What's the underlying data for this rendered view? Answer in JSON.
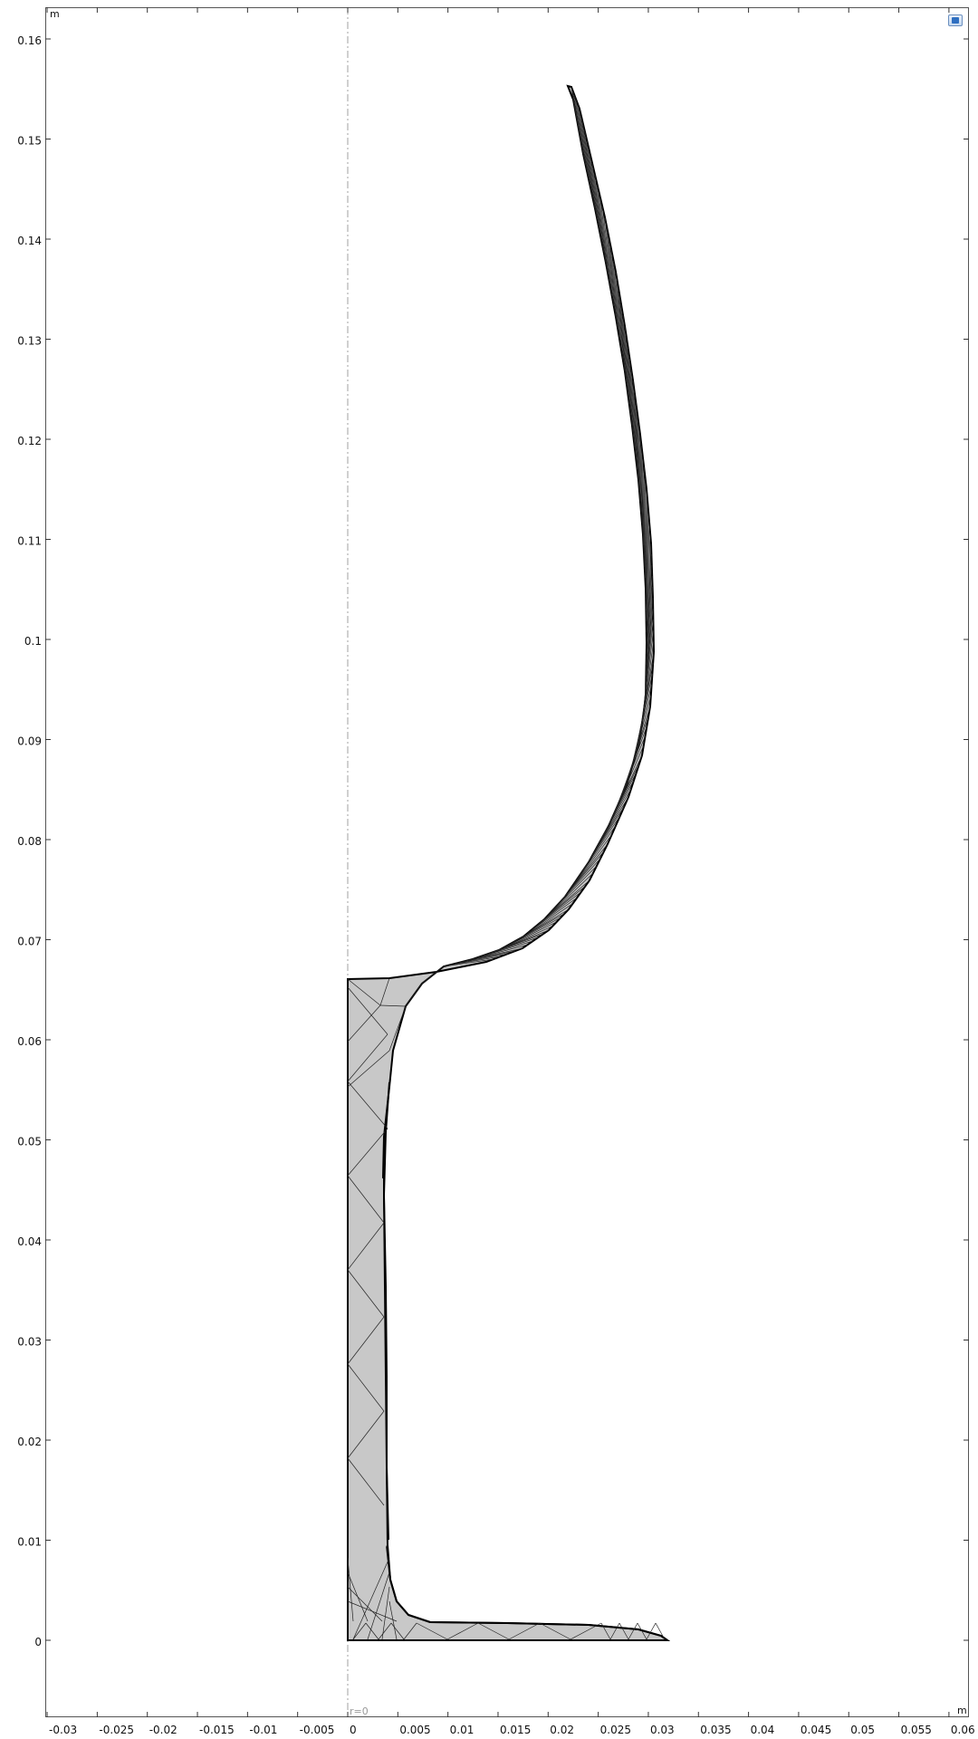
{
  "axes": {
    "x_unit": "m",
    "y_unit": "m",
    "axis_marker": "r=0",
    "x_ticks": [
      "-0.03",
      "-0.025",
      "-0.02",
      "-0.015",
      "-0.01",
      "-0.005",
      "0",
      "0.005",
      "0.01",
      "0.015",
      "0.02",
      "0.025",
      "0.03",
      "0.035",
      "0.04",
      "0.045",
      "0.05",
      "0.055",
      "0.06"
    ],
    "y_ticks": [
      "0",
      "0.01",
      "0.02",
      "0.03",
      "0.04",
      "0.05",
      "0.06",
      "0.07",
      "0.08",
      "0.09",
      "0.1",
      "0.11",
      "0.12",
      "0.13",
      "0.14",
      "0.15",
      "0.16"
    ]
  },
  "diagram": {
    "geometry": "axisymmetric wine glass cross-section (meshed)",
    "outline_inner": [
      [
        0,
        0.0665
      ],
      [
        0.004,
        0.0667
      ],
      [
        0.01,
        0.0672
      ],
      [
        0.0145,
        0.0678
      ],
      [
        0.018,
        0.0688
      ],
      [
        0.021,
        0.0705
      ],
      [
        0.0235,
        0.0728
      ],
      [
        0.0258,
        0.076
      ],
      [
        0.0277,
        0.0805
      ],
      [
        0.0291,
        0.0852
      ],
      [
        0.0298,
        0.09
      ],
      [
        0.03,
        0.095
      ],
      [
        0.0299,
        0.1
      ],
      [
        0.0296,
        0.105
      ],
      [
        0.029,
        0.11
      ],
      [
        0.0283,
        0.115
      ],
      [
        0.0273,
        0.12
      ],
      [
        0.0262,
        0.125
      ],
      [
        0.025,
        0.13
      ],
      [
        0.0238,
        0.135
      ],
      [
        0.0227,
        0.14
      ],
      [
        0.0216,
        0.145
      ],
      [
        0.0205,
        0.15
      ],
      [
        0.0195,
        0.155
      ]
    ],
    "outline_outer": [
      [
        0.0318,
        0.0005
      ],
      [
        0.0315,
        0.002
      ],
      [
        0.031,
        0.0025
      ],
      [
        0.0285,
        0.0033
      ],
      [
        0.024,
        0.0038
      ],
      [
        0.017,
        0.004
      ],
      [
        0.008,
        0.004
      ],
      [
        0.0055,
        0.0038
      ],
      [
        0.0048,
        0.0033
      ],
      [
        0.0042,
        0.0025
      ],
      [
        0.0038,
        0.0015
      ],
      [
        0.0036,
        0.0
      ],
      [
        0.0036,
        0.005
      ],
      [
        0.0038,
        0.01
      ],
      [
        0.0042,
        0.02
      ],
      [
        0.0042,
        0.03
      ],
      [
        0.0038,
        0.04
      ],
      [
        0.0035,
        0.045
      ],
      [
        0.0035,
        0.05
      ],
      [
        0.0043,
        0.055
      ],
      [
        0.0055,
        0.06
      ],
      [
        0.0075,
        0.0628
      ],
      [
        0.01,
        0.0648
      ],
      [
        0.0128,
        0.066
      ],
      [
        0.016,
        0.067
      ],
      [
        0.019,
        0.0685
      ],
      [
        0.022,
        0.0712
      ],
      [
        0.0245,
        0.075
      ],
      [
        0.0267,
        0.0795
      ],
      [
        0.0283,
        0.0845
      ],
      [
        0.0294,
        0.09
      ],
      [
        0.0318,
        0.095
      ]
    ],
    "fill_color": "#c8c8c8",
    "edge_color": "#000000",
    "symmetry_axis_color": "#a0a0a0"
  }
}
